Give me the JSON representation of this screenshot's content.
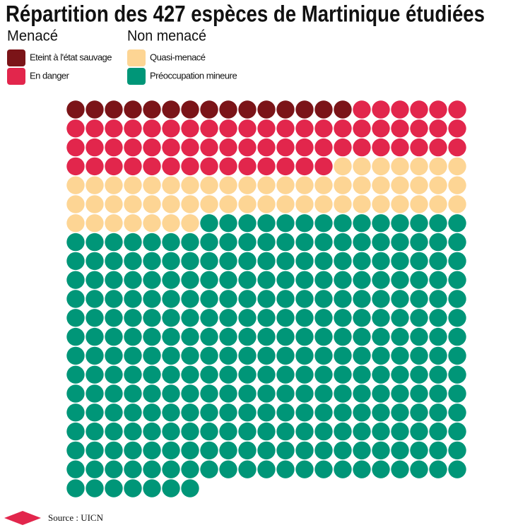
{
  "chart_data": {
    "type": "waffle",
    "title": "Répartition des 427 espèces de Martinique étudiées",
    "groups": [
      {
        "name": "Menacé",
        "series": [
          {
            "name": "Eteint à l'état sauvage",
            "color": "#7b1418",
            "value": 15
          },
          {
            "name": "En danger",
            "color": "#e2264c",
            "value": 62
          }
        ]
      },
      {
        "name": "Non menacé",
        "series": [
          {
            "name": "Quasi-menacé",
            "color": "#fdd594",
            "value": 56
          },
          {
            "name": "Préoccupation mineure",
            "color": "#009678",
            "value": 294
          }
        ]
      }
    ],
    "source": "Source : UICN"
  }
}
